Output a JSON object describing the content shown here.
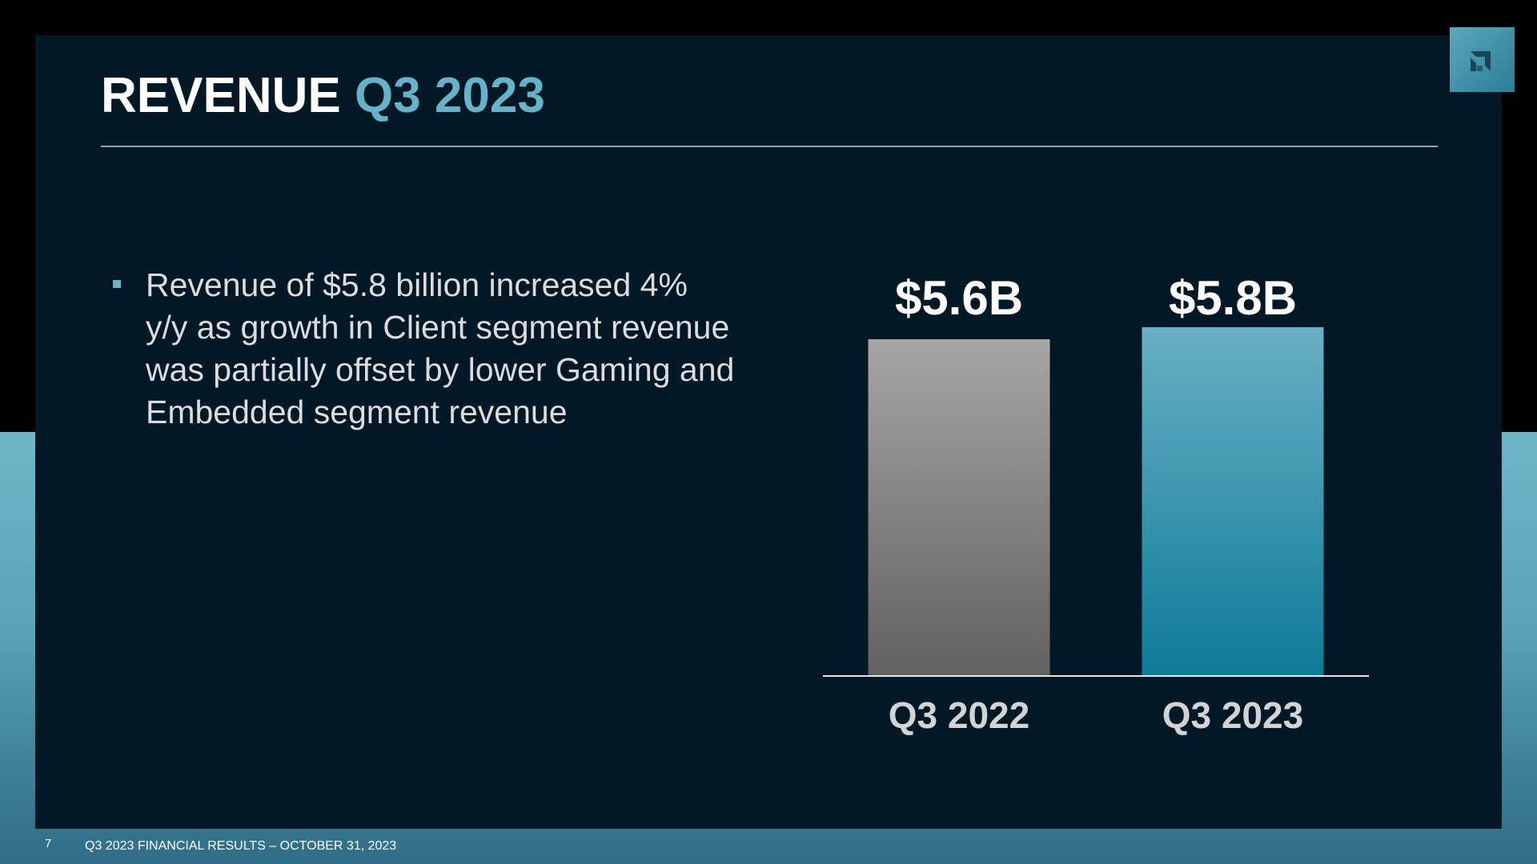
{
  "slide": {
    "title_part1": "REVENUE",
    "title_part2": "Q3 2023",
    "bullet_text": "Revenue of $5.8 billion increased 4% y/y as growth in Client segment revenue was partially offset by lower Gaming and Embedded segment revenue",
    "page_number": "7",
    "footer": "Q3 2023 FINANCIAL RESULTS – OCTOBER 31, 2023"
  },
  "colors": {
    "accent": "#66b3c9",
    "bar_2022": "#8a8a8a",
    "bar_2023": "#3d97b0",
    "background": "#021824"
  },
  "logo": {
    "icon": "amd-logo-icon"
  },
  "chart_data": {
    "type": "bar",
    "categories": [
      "Q3 2022",
      "Q3 2023"
    ],
    "values": [
      5.6,
      5.8
    ],
    "data_labels": [
      "$5.6B",
      "$5.8B"
    ],
    "unit": "billion USD",
    "ylim": [
      0,
      6.0
    ],
    "grid": false,
    "legend": "none"
  }
}
